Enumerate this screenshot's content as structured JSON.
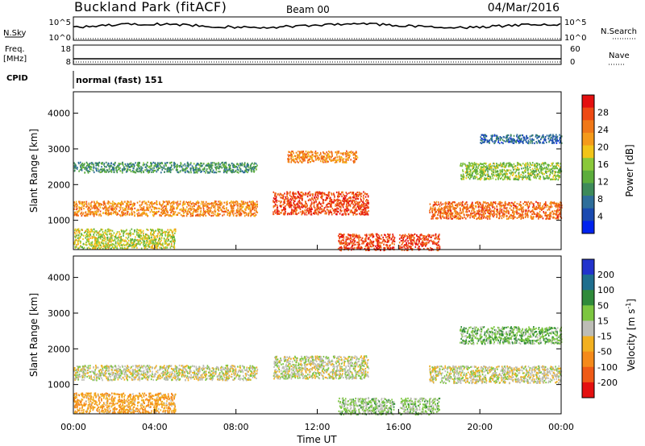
{
  "header": {
    "station": "Buckland Park (fitACF)",
    "beam": "Beam 00",
    "date": "04/Mar/2016"
  },
  "strip_labels": {
    "nsky": "N.Sky",
    "nsky_ticks": [
      "10^5",
      "10^0"
    ],
    "nsearch": "N.Search",
    "nsearch_ticks": [
      "10^5",
      "10^0"
    ],
    "freq_line1": "Freq.",
    "freq_line2": "[MHz]",
    "freq_ticks": [
      "18",
      "8"
    ],
    "nave": "Nave",
    "nave_ticks": [
      "60",
      "0"
    ],
    "cpid": "CPID",
    "cpid_value": "normal (fast) 151"
  },
  "colors": {
    "power_scale": [
      "#0022ee",
      "#1a4ab0",
      "#2e6e9a",
      "#3d8a5a",
      "#5cad3c",
      "#8ac83a",
      "#f2c418",
      "#f59a1a",
      "#f07818",
      "#ee4a14",
      "#e41010"
    ],
    "velocity_scale": [
      "#2233cc",
      "#1e6e8e",
      "#2f8a3a",
      "#7cc640",
      "#bdbdb6",
      "#f2b020",
      "#f58a1a",
      "#ef5a16",
      "#e41010"
    ]
  },
  "chart_data": [
    {
      "type": "heatmap",
      "name_panel": "power",
      "xlabel": "",
      "ylabel": "Slant Range [km]",
      "x_ticks": [
        "00:00",
        "04:00",
        "08:00",
        "12:00",
        "16:00",
        "20:00",
        "00:00"
      ],
      "x_range_hours": [
        0,
        24
      ],
      "y_ticks": [
        1000,
        2000,
        3000,
        4000
      ],
      "ylim": [
        180,
        4600
      ],
      "colorbar_label": "Power [dB]",
      "colorbar_ticks": [
        28,
        24,
        20,
        16,
        12,
        8,
        4
      ],
      "colorbar_range": [
        0,
        30
      ],
      "data_gaps_hours": [
        9.15,
        15.9
      ],
      "echo_bands": [
        {
          "t_start": 0.0,
          "t_end": 9.1,
          "range_km": 1350,
          "width_km": 260,
          "power_db": 22
        },
        {
          "t_start": 0.0,
          "t_end": 9.1,
          "range_km": 2500,
          "width_km": 180,
          "power_db": 10
        },
        {
          "t_start": 0.0,
          "t_end": 5.0,
          "range_km": 500,
          "width_km": 350,
          "power_db": 16
        },
        {
          "t_start": 9.8,
          "t_end": 14.5,
          "range_km": 1500,
          "width_km": 400,
          "power_db": 26
        },
        {
          "t_start": 10.5,
          "t_end": 14.0,
          "range_km": 2800,
          "width_km": 200,
          "power_db": 22
        },
        {
          "t_start": 13.0,
          "t_end": 18.0,
          "range_km": 400,
          "width_km": 300,
          "power_db": 26
        },
        {
          "t_start": 17.5,
          "t_end": 24.0,
          "range_km": 1300,
          "width_km": 300,
          "power_db": 24
        },
        {
          "t_start": 19.0,
          "t_end": 24.0,
          "range_km": 2400,
          "width_km": 300,
          "power_db": 14
        },
        {
          "t_start": 20.0,
          "t_end": 24.0,
          "range_km": 3300,
          "width_km": 150,
          "power_db": 6
        }
      ]
    },
    {
      "type": "heatmap",
      "name_panel": "velocity",
      "xlabel": "Time UT",
      "ylabel": "Slant Range [km]",
      "x_ticks": [
        "00:00",
        "04:00",
        "08:00",
        "12:00",
        "16:00",
        "20:00",
        "00:00"
      ],
      "x_range_hours": [
        0,
        24
      ],
      "y_ticks": [
        1000,
        2000,
        3000,
        4000
      ],
      "ylim": [
        180,
        4600
      ],
      "colorbar_label": "Velocity [m s",
      "colorbar_label_sup": "-1",
      "colorbar_label_end": "]",
      "colorbar_ticks": [
        "200",
        "100",
        "50",
        "15",
        "-15",
        "-50",
        "-100",
        "-200"
      ],
      "colorbar_range": [
        -250,
        250
      ],
      "data_gaps_hours": [
        9.15,
        15.9
      ],
      "echo_bands": [
        {
          "t_start": 0.0,
          "t_end": 9.1,
          "range_km": 1350,
          "width_km": 260,
          "velocity_ms": 0
        },
        {
          "t_start": 0.0,
          "t_end": 5.0,
          "range_km": 500,
          "width_km": 350,
          "velocity_ms": -80
        },
        {
          "t_start": 9.8,
          "t_end": 14.5,
          "range_km": 1500,
          "width_km": 400,
          "velocity_ms": 5
        },
        {
          "t_start": 13.0,
          "t_end": 18.0,
          "range_km": 400,
          "width_km": 300,
          "velocity_ms": 40
        },
        {
          "t_start": 17.5,
          "t_end": 24.0,
          "range_km": 1300,
          "width_km": 300,
          "velocity_ms": 0
        },
        {
          "t_start": 19.0,
          "t_end": 24.0,
          "range_km": 2400,
          "width_km": 300,
          "velocity_ms": 60
        }
      ]
    }
  ]
}
